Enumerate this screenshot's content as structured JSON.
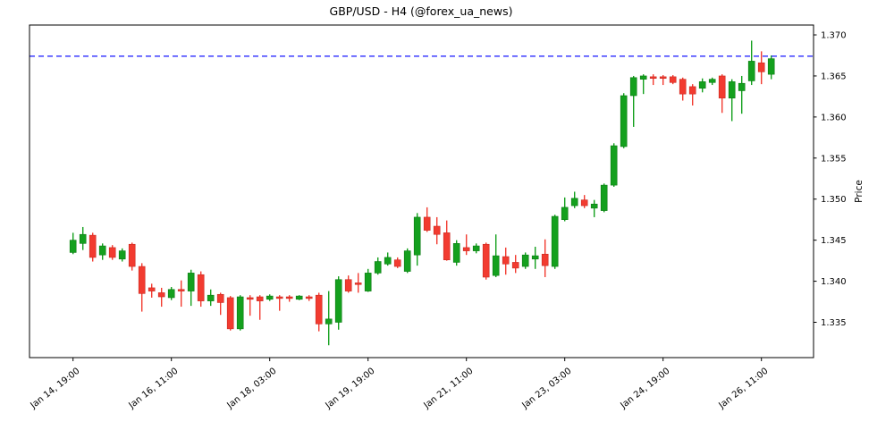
{
  "title": "GBP/USD - H4 (@forex_ua_news)",
  "chart_data": {
    "type": "candlestick",
    "symbol": "GBP/USD",
    "timeframe": "H4",
    "source": "@forex_ua_news",
    "ylabel": "Price",
    "ylim": [
      1.3307,
      1.3712
    ],
    "grid": false,
    "legend": "none",
    "y_ticks": [
      1.37,
      1.365,
      1.36,
      1.355,
      1.35,
      1.345,
      1.34,
      1.335
    ],
    "x_tick_labels": [
      "Jan 14, 19:00",
      "Jan 16, 11:00",
      "Jan 18, 03:00",
      "Jan 19, 19:00",
      "Jan 21, 11:00",
      "Jan 23, 03:00",
      "Jan 24, 19:00",
      "Jan 26, 11:00"
    ],
    "x_tick_indices": [
      0,
      10,
      20,
      30,
      40,
      50,
      60,
      70
    ],
    "hline": {
      "value": 1.3674,
      "color": "#1414ff",
      "style": "dashed"
    },
    "colors": {
      "up": "#14a01e",
      "up_edge": "#0b7a13",
      "down": "#f23b30",
      "down_edge": "#c92a21",
      "axis": "#000000"
    },
    "candles_format": [
      "open",
      "high",
      "low",
      "close"
    ],
    "candles": [
      [
        1.3435,
        1.3459,
        1.3433,
        1.345
      ],
      [
        1.3446,
        1.3466,
        1.3438,
        1.3457
      ],
      [
        1.3456,
        1.3459,
        1.3424,
        1.3429
      ],
      [
        1.3432,
        1.3446,
        1.3426,
        1.3443
      ],
      [
        1.3441,
        1.3444,
        1.3426,
        1.3429
      ],
      [
        1.3427,
        1.344,
        1.3424,
        1.3437
      ],
      [
        1.3445,
        1.3447,
        1.3413,
        1.3418
      ],
      [
        1.3418,
        1.3422,
        1.3363,
        1.3385
      ],
      [
        1.3392,
        1.3397,
        1.338,
        1.3388
      ],
      [
        1.3386,
        1.3392,
        1.3369,
        1.3381
      ],
      [
        1.338,
        1.3393,
        1.3377,
        1.339
      ],
      [
        1.339,
        1.3401,
        1.3369,
        1.3388
      ],
      [
        1.3388,
        1.3414,
        1.337,
        1.341
      ],
      [
        1.3408,
        1.3412,
        1.3369,
        1.3376
      ],
      [
        1.3376,
        1.339,
        1.337,
        1.3383
      ],
      [
        1.3384,
        1.3386,
        1.3359,
        1.3374
      ],
      [
        1.338,
        1.3382,
        1.334,
        1.3342
      ],
      [
        1.3342,
        1.3383,
        1.334,
        1.3381
      ],
      [
        1.338,
        1.3383,
        1.3358,
        1.3378
      ],
      [
        1.3381,
        1.3383,
        1.3353,
        1.3376
      ],
      [
        1.3378,
        1.3384,
        1.3376,
        1.3382
      ],
      [
        1.3381,
        1.3383,
        1.3364,
        1.3379
      ],
      [
        1.3381,
        1.3383,
        1.3375,
        1.3379
      ],
      [
        1.3378,
        1.3383,
        1.3377,
        1.3382
      ],
      [
        1.3381,
        1.3383,
        1.3376,
        1.3379
      ],
      [
        1.3383,
        1.3386,
        1.3339,
        1.3348
      ],
      [
        1.3348,
        1.3388,
        1.3322,
        1.3354
      ],
      [
        1.335,
        1.3406,
        1.3341,
        1.3402
      ],
      [
        1.3402,
        1.3407,
        1.3386,
        1.3388
      ],
      [
        1.3398,
        1.341,
        1.3386,
        1.3396
      ],
      [
        1.3388,
        1.3415,
        1.3387,
        1.341
      ],
      [
        1.341,
        1.3429,
        1.3408,
        1.3424
      ],
      [
        1.3421,
        1.3435,
        1.3419,
        1.3429
      ],
      [
        1.3426,
        1.3429,
        1.3416,
        1.3418
      ],
      [
        1.3412,
        1.344,
        1.341,
        1.3437
      ],
      [
        1.3432,
        1.3483,
        1.3419,
        1.3478
      ],
      [
        1.3478,
        1.349,
        1.346,
        1.3462
      ],
      [
        1.3467,
        1.3478,
        1.3445,
        1.3457
      ],
      [
        1.3459,
        1.3474,
        1.3425,
        1.3426
      ],
      [
        1.3423,
        1.345,
        1.3419,
        1.3446
      ],
      [
        1.3441,
        1.3457,
        1.3432,
        1.3437
      ],
      [
        1.3437,
        1.3446,
        1.3434,
        1.3443
      ],
      [
        1.3445,
        1.3447,
        1.3402,
        1.3405
      ],
      [
        1.3407,
        1.3457,
        1.3405,
        1.3431
      ],
      [
        1.343,
        1.3441,
        1.3408,
        1.3421
      ],
      [
        1.3423,
        1.3432,
        1.341,
        1.3416
      ],
      [
        1.3418,
        1.3435,
        1.3415,
        1.3432
      ],
      [
        1.3427,
        1.3442,
        1.3415,
        1.3431
      ],
      [
        1.3433,
        1.3451,
        1.3405,
        1.3419
      ],
      [
        1.3418,
        1.3481,
        1.3415,
        1.3479
      ],
      [
        1.3475,
        1.3502,
        1.3473,
        1.349
      ],
      [
        1.3492,
        1.3509,
        1.3489,
        1.3501
      ],
      [
        1.3499,
        1.3505,
        1.3489,
        1.3492
      ],
      [
        1.3489,
        1.3499,
        1.3478,
        1.3494
      ],
      [
        1.3486,
        1.3519,
        1.3484,
        1.3517
      ],
      [
        1.3517,
        1.3568,
        1.3515,
        1.3565
      ],
      [
        1.3564,
        1.3629,
        1.3562,
        1.3626
      ],
      [
        1.3626,
        1.365,
        1.3588,
        1.3648
      ],
      [
        1.3646,
        1.3652,
        1.3628,
        1.365
      ],
      [
        1.3649,
        1.3652,
        1.3639,
        1.3647
      ],
      [
        1.3649,
        1.3651,
        1.3639,
        1.3647
      ],
      [
        1.3649,
        1.3651,
        1.364,
        1.3642
      ],
      [
        1.3646,
        1.3648,
        1.362,
        1.3628
      ],
      [
        1.3637,
        1.364,
        1.3614,
        1.3628
      ],
      [
        1.3635,
        1.3647,
        1.363,
        1.3643
      ],
      [
        1.3642,
        1.3648,
        1.3639,
        1.3646
      ],
      [
        1.365,
        1.3652,
        1.3605,
        1.3623
      ],
      [
        1.3623,
        1.3646,
        1.3595,
        1.3643
      ],
      [
        1.3632,
        1.365,
        1.3604,
        1.3641
      ],
      [
        1.3644,
        1.3693,
        1.3639,
        1.3668
      ],
      [
        1.3666,
        1.368,
        1.364,
        1.3655
      ],
      [
        1.3652,
        1.3675,
        1.3646,
        1.3671
      ]
    ]
  }
}
